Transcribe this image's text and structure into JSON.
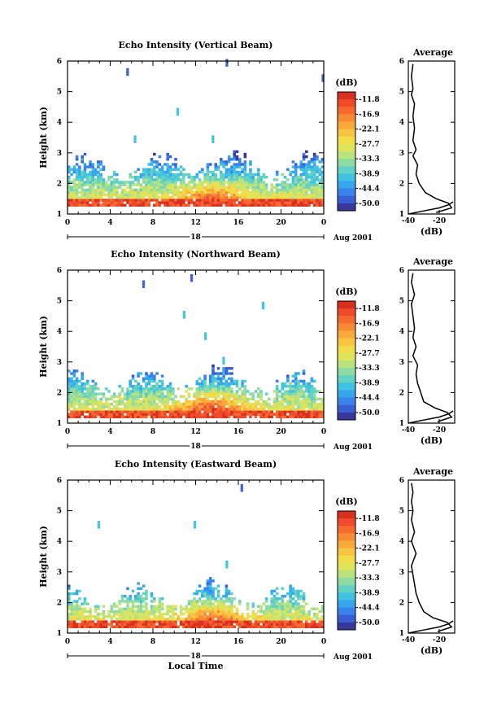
{
  "chart_data": [
    {
      "type": "heatmap",
      "title": "Echo Intensity (Vertical Beam)",
      "ylabel": "Height (km)",
      "xlabel": "",
      "x_ticks": [
        "0",
        "4",
        "8",
        "12",
        "16",
        "20",
        "0"
      ],
      "y_ticks": [
        "1",
        "2",
        "3",
        "4",
        "5",
        "6"
      ],
      "xlim": [
        0,
        24
      ],
      "ylim": [
        1,
        6
      ],
      "date_label": "18",
      "date_suffix": "Aug 2001",
      "colorbar": {
        "unit": "(dB)",
        "ticks": [
          "-11.8",
          "-16.9",
          "-22.1",
          "-27.7",
          "-33.3",
          "-38.9",
          "-44.4",
          "-50.0"
        ]
      },
      "profile": {
        "title": "Average",
        "xlabel": "(dB)",
        "x_ticks": [
          "-40",
          "-20"
        ],
        "y_ticks": [
          "1",
          "2",
          "3",
          "4",
          "5",
          "6"
        ],
        "xlim": [
          -40,
          -10
        ],
        "ylim": [
          1,
          6
        ],
        "height": [
          1.05,
          1.2,
          1.35,
          1.5,
          1.7,
          2.0,
          2.3,
          2.6,
          2.9,
          3.1,
          3.4,
          3.8,
          4.2,
          4.6,
          4.9,
          5.1,
          5.5,
          5.9
        ],
        "value": [
          -22,
          -12,
          -14,
          -22,
          -29,
          -33,
          -35,
          -34,
          -37,
          -35,
          -37,
          -36,
          -37,
          -36,
          -38,
          -37,
          -38,
          -37
        ],
        "lower_height": [
          1.0,
          1.1,
          1.2,
          1.3,
          1.4
        ],
        "lower_value": [
          -40,
          -30,
          -20,
          -14,
          -11
        ]
      },
      "layers": {
        "base": 1.35,
        "cloud_top": 2.9,
        "plume_peak": 2.25,
        "plume_hour": 13.5,
        "sparse": [
          [
            5.5,
            5.6
          ],
          [
            14.8,
            5.9
          ],
          [
            10.2,
            4.3
          ],
          [
            6.2,
            3.4
          ],
          [
            13.5,
            3.4
          ],
          [
            23.8,
            5.4
          ]
        ]
      }
    },
    {
      "type": "heatmap",
      "title": "Echo Intensity (Northward Beam)",
      "ylabel": "Height (km)",
      "xlabel": "",
      "x_ticks": [
        "0",
        "4",
        "8",
        "12",
        "16",
        "20",
        "0"
      ],
      "y_ticks": [
        "1",
        "2",
        "3",
        "4",
        "5",
        "6"
      ],
      "xlim": [
        0,
        24
      ],
      "ylim": [
        1,
        6
      ],
      "date_label": "18",
      "date_suffix": "Aug 2001",
      "colorbar": {
        "unit": "(dB)",
        "ticks": [
          "-11.8",
          "-16.9",
          "-22.1",
          "-27.7",
          "-33.3",
          "-38.9",
          "-44.4",
          "-50.0"
        ]
      },
      "profile": {
        "title": "Average",
        "xlabel": "(dB)",
        "x_ticks": [
          "-40",
          "-20"
        ],
        "y_ticks": [
          "1",
          "2",
          "3",
          "4",
          "5",
          "6"
        ],
        "xlim": [
          -40,
          -10
        ],
        "ylim": [
          1,
          6
        ],
        "height": [
          1.05,
          1.2,
          1.35,
          1.5,
          1.7,
          2.0,
          2.3,
          2.6,
          2.9,
          3.2,
          3.5,
          3.8,
          4.1,
          4.5,
          4.9,
          5.2,
          5.6,
          5.9
        ],
        "value": [
          -21,
          -12,
          -15,
          -23,
          -30,
          -32,
          -34,
          -35,
          -34,
          -37,
          -35,
          -37,
          -36,
          -37,
          -38,
          -36,
          -38,
          -37
        ],
        "lower_height": [
          1.0,
          1.1,
          1.2,
          1.3,
          1.4
        ],
        "lower_value": [
          -40,
          -30,
          -20,
          -14,
          -11
        ]
      },
      "layers": {
        "base": 1.3,
        "cloud_top": 2.7,
        "plume_peak": 2.3,
        "plume_hour": 13.5,
        "sparse": [
          [
            7.0,
            5.5
          ],
          [
            11.5,
            5.7
          ],
          [
            10.8,
            4.5
          ],
          [
            14.5,
            3.0
          ],
          [
            18.2,
            4.8
          ],
          [
            12.8,
            3.8
          ]
        ]
      }
    },
    {
      "type": "heatmap",
      "title": "Echo Intensity (Eastward Beam)",
      "ylabel": "Height (km)",
      "xlabel": "Local Time",
      "x_ticks": [
        "0",
        "4",
        "8",
        "12",
        "16",
        "20",
        "0"
      ],
      "y_ticks": [
        "1",
        "2",
        "3",
        "4",
        "5",
        "6"
      ],
      "xlim": [
        0,
        24
      ],
      "ylim": [
        1,
        6
      ],
      "date_label": "18",
      "date_suffix": "Aug 2001",
      "colorbar": {
        "unit": "(dB)",
        "ticks": [
          "-11.8",
          "-16.9",
          "-22.1",
          "-27.7",
          "-33.3",
          "-38.9",
          "-44.4",
          "-50.0"
        ]
      },
      "profile": {
        "title": "Average",
        "xlabel": "(dB)",
        "x_ticks": [
          "-40",
          "-20"
        ],
        "y_ticks": [
          "1",
          "2",
          "3",
          "4",
          "5",
          "6"
        ],
        "xlim": [
          -40,
          -10
        ],
        "ylim": [
          1,
          6
        ],
        "height": [
          1.05,
          1.2,
          1.35,
          1.5,
          1.7,
          2.0,
          2.3,
          2.6,
          2.9,
          3.2,
          3.6,
          4.0,
          4.3,
          4.7,
          5.0,
          5.3,
          5.6,
          5.9
        ],
        "value": [
          -21,
          -12,
          -15,
          -24,
          -30,
          -33,
          -35,
          -36,
          -37,
          -38,
          -35,
          -38,
          -36,
          -38,
          -37,
          -38,
          -37,
          -38
        ],
        "lower_height": [
          1.0,
          1.1,
          1.2,
          1.3,
          1.4
        ],
        "lower_value": [
          -40,
          -30,
          -20,
          -14,
          -11
        ]
      },
      "layers": {
        "base": 1.3,
        "cloud_top": 2.5,
        "plume_peak": 2.2,
        "plume_hour": 13.5,
        "sparse": [
          [
            2.8,
            4.5
          ],
          [
            11.8,
            4.5
          ],
          [
            14.8,
            3.2
          ],
          [
            16.2,
            5.7
          ]
        ]
      }
    }
  ]
}
